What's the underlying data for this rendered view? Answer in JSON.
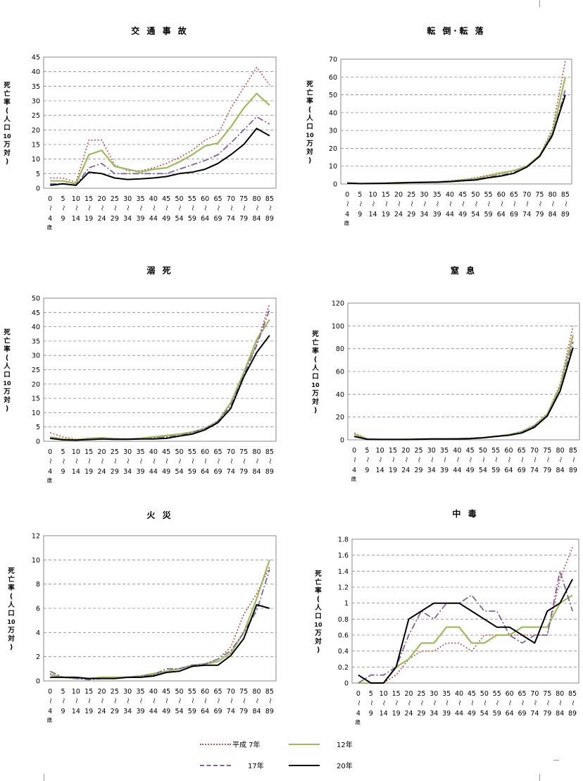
{
  "ylabel_lines": [
    "死",
    "亡",
    "率",
    "(",
    "人",
    "口",
    "10",
    "万",
    "対",
    ")"
  ],
  "age_groups": {
    "top": [
      "0",
      "5",
      "10",
      "15",
      "20",
      "25",
      "30",
      "35",
      "40",
      "45",
      "50",
      "55",
      "60",
      "65",
      "70",
      "75",
      "80",
      "85"
    ],
    "bottom": [
      "4",
      "9",
      "14",
      "19",
      "24",
      "29",
      "34",
      "39",
      "44",
      "49",
      "54",
      "59",
      "64",
      "69",
      "74",
      "79",
      "84",
      "89"
    ],
    "first_suffix": "歳",
    "separator": "〜"
  },
  "legend": {
    "items": [
      {
        "label": "平成 7年",
        "color": "#c0504d",
        "style": "dotted"
      },
      {
        "label": "12年",
        "color": "#9bbb59",
        "style": "solid"
      },
      {
        "label": "17年",
        "color": "#8064a2",
        "style": "dashdot"
      },
      {
        "label": "20年",
        "color": "#000000",
        "style": "solid"
      }
    ]
  },
  "chart_data": [
    {
      "type": "line",
      "title": "交 通 事 故",
      "ylim": [
        0,
        45
      ],
      "yticks": [
        0,
        5,
        10,
        15,
        20,
        25,
        30,
        35,
        40,
        45
      ],
      "series": [
        {
          "name": "平成 7年",
          "values": [
            3.5,
            3.5,
            2.0,
            16.5,
            16.5,
            8.0,
            6.0,
            6.0,
            7.0,
            8.5,
            10.5,
            13.0,
            16.5,
            18.5,
            27.5,
            34.5,
            41.5,
            35.5
          ]
        },
        {
          "name": "12年",
          "values": [
            2.5,
            2.5,
            1.5,
            11.5,
            13.0,
            7.5,
            6.5,
            5.5,
            6.5,
            7.0,
            9.0,
            11.5,
            14.5,
            15.5,
            21.0,
            27.5,
            32.5,
            28.5
          ]
        },
        {
          "name": "17年",
          "values": [
            1.5,
            1.5,
            1.0,
            7.0,
            8.5,
            5.0,
            5.0,
            5.0,
            5.0,
            5.0,
            6.5,
            8.0,
            9.5,
            11.5,
            15.5,
            20.0,
            24.5,
            22.0
          ]
        },
        {
          "name": "20年",
          "values": [
            1.0,
            1.5,
            1.0,
            5.5,
            5.0,
            3.5,
            3.0,
            3.2,
            3.5,
            4.0,
            5.0,
            5.5,
            6.5,
            8.5,
            11.5,
            15.0,
            20.5,
            18.0
          ]
        }
      ]
    },
    {
      "type": "line",
      "title": "転 倒･転 落",
      "ylim": [
        0,
        70
      ],
      "yticks": [
        0,
        10,
        20,
        30,
        40,
        50,
        60,
        70
      ],
      "series": [
        {
          "name": "平成 7年",
          "values": [
            0.5,
            0.2,
            0.3,
            0.5,
            0.8,
            1.0,
            1.2,
            1.3,
            1.8,
            2.5,
            3.5,
            5.0,
            6.5,
            7.5,
            10.0,
            16.0,
            31.0,
            69.0
          ]
        },
        {
          "name": "12年",
          "values": [
            0.5,
            0.2,
            0.3,
            0.4,
            0.7,
            0.8,
            1.0,
            1.2,
            1.5,
            2.2,
            3.0,
            4.5,
            6.0,
            7.5,
            10.0,
            16.0,
            29.0,
            60.0
          ]
        },
        {
          "name": "17年",
          "values": [
            0.4,
            0.2,
            0.2,
            0.4,
            0.6,
            0.8,
            1.0,
            1.2,
            1.5,
            2.0,
            2.5,
            3.8,
            5.0,
            6.5,
            9.5,
            15.5,
            27.0,
            53.0
          ]
        },
        {
          "name": "20年",
          "values": [
            0.5,
            0.2,
            0.3,
            0.4,
            0.6,
            0.8,
            0.9,
            1.0,
            1.3,
            1.8,
            2.2,
            3.5,
            4.5,
            6.0,
            9.5,
            15.5,
            27.5,
            50.0
          ]
        }
      ]
    },
    {
      "type": "line",
      "title": "溺 死",
      "ylim": [
        0,
        50
      ],
      "yticks": [
        0,
        5,
        10,
        15,
        20,
        25,
        30,
        35,
        40,
        45,
        50
      ],
      "series": [
        {
          "name": "平成 7年",
          "values": [
            3.0,
            1.5,
            0.7,
            1.0,
            1.2,
            1.0,
            0.8,
            1.0,
            1.2,
            1.5,
            2.5,
            3.0,
            4.0,
            7.0,
            13.5,
            24.0,
            34.0,
            48.0
          ]
        },
        {
          "name": "12年",
          "values": [
            1.5,
            0.8,
            0.5,
            1.0,
            1.2,
            0.9,
            0.8,
            1.0,
            1.5,
            2.0,
            2.5,
            3.2,
            4.5,
            7.0,
            13.5,
            24.0,
            35.5,
            42.5
          ]
        },
        {
          "name": "17年",
          "values": [
            1.0,
            0.5,
            0.4,
            0.6,
            0.8,
            0.7,
            0.8,
            0.8,
            1.0,
            1.5,
            2.0,
            3.0,
            4.5,
            7.0,
            12.5,
            23.0,
            33.5,
            46.0
          ]
        },
        {
          "name": "20年",
          "values": [
            1.0,
            0.5,
            0.4,
            0.6,
            0.8,
            0.7,
            0.7,
            0.8,
            0.8,
            1.0,
            1.8,
            2.5,
            4.0,
            6.5,
            11.5,
            22.5,
            31.0,
            37.0
          ]
        }
      ]
    },
    {
      "type": "line",
      "title": "窒 息",
      "ylim": [
        0,
        120
      ],
      "yticks": [
        0,
        20,
        40,
        60,
        80,
        100,
        120
      ],
      "series": [
        {
          "name": "平成 7年",
          "values": [
            6.0,
            1.0,
            0.5,
            0.5,
            0.5,
            0.8,
            0.8,
            0.8,
            1.0,
            1.5,
            2.0,
            3.0,
            4.5,
            7.5,
            13.0,
            23.0,
            49.0,
            100.0
          ]
        },
        {
          "name": "12年",
          "values": [
            5.0,
            0.8,
            0.5,
            0.5,
            0.5,
            0.8,
            0.8,
            0.8,
            1.0,
            1.3,
            2.0,
            3.0,
            4.5,
            7.0,
            12.5,
            22.5,
            47.0,
            92.0
          ]
        },
        {
          "name": "17年",
          "values": [
            3.0,
            0.5,
            0.3,
            0.3,
            0.5,
            0.5,
            0.8,
            0.8,
            1.0,
            1.3,
            2.0,
            3.0,
            4.0,
            6.5,
            12.0,
            21.0,
            44.0,
            86.0
          ]
        },
        {
          "name": "20年",
          "values": [
            3.0,
            0.5,
            0.3,
            0.3,
            0.3,
            0.5,
            0.8,
            0.8,
            0.8,
            1.0,
            1.8,
            3.0,
            4.0,
            6.0,
            11.0,
            21.0,
            43.0,
            81.0
          ]
        }
      ]
    },
    {
      "type": "line",
      "title": "火 災",
      "ylim": [
        0,
        12
      ],
      "yticks": [
        0,
        2,
        4,
        6,
        8,
        10,
        12
      ],
      "series": [
        {
          "name": "平成 7年",
          "values": [
            0.6,
            0.3,
            0.2,
            0.2,
            0.3,
            0.3,
            0.3,
            0.4,
            0.5,
            0.8,
            1.0,
            1.3,
            1.4,
            1.8,
            2.8,
            5.5,
            7.2,
            9.4
          ]
        },
        {
          "name": "12年",
          "values": [
            0.5,
            0.3,
            0.2,
            0.2,
            0.3,
            0.3,
            0.3,
            0.4,
            0.6,
            0.8,
            1.0,
            1.3,
            1.4,
            1.6,
            2.3,
            4.0,
            6.8,
            10.0
          ]
        },
        {
          "name": "17年",
          "values": [
            0.8,
            0.3,
            0.2,
            0.1,
            0.2,
            0.2,
            0.3,
            0.4,
            0.5,
            1.0,
            1.0,
            1.3,
            1.4,
            1.8,
            2.5,
            4.0,
            5.8,
            9.2
          ]
        },
        {
          "name": "20年",
          "values": [
            0.3,
            0.3,
            0.3,
            0.2,
            0.2,
            0.2,
            0.3,
            0.3,
            0.4,
            0.7,
            0.8,
            1.2,
            1.3,
            1.3,
            2.1,
            3.5,
            6.3,
            6.0
          ]
        }
      ]
    },
    {
      "type": "line",
      "title": "中 毒",
      "ylim": [
        0,
        1.8
      ],
      "yticks": [
        0,
        0.2,
        0.4,
        0.6,
        0.8,
        1,
        1.2,
        1.4,
        1.6,
        1.8
      ],
      "series": [
        {
          "name": "平成 7年",
          "values": [
            0.0,
            0.0,
            0.0,
            0.1,
            0.3,
            0.4,
            0.4,
            0.5,
            0.5,
            0.4,
            0.6,
            0.6,
            0.6,
            0.6,
            0.6,
            0.6,
            1.3,
            1.7
          ]
        },
        {
          "name": "12年",
          "values": [
            0.0,
            0.0,
            0.0,
            0.2,
            0.3,
            0.5,
            0.5,
            0.7,
            0.7,
            0.5,
            0.5,
            0.6,
            0.6,
            0.7,
            0.7,
            0.7,
            1.0,
            1.1
          ]
        },
        {
          "name": "17年",
          "values": [
            0.0,
            0.1,
            0.1,
            0.2,
            0.6,
            0.9,
            0.8,
            1.0,
            1.0,
            1.1,
            0.9,
            0.9,
            0.6,
            0.5,
            0.6,
            0.6,
            1.4,
            0.9
          ]
        },
        {
          "name": "20年",
          "values": [
            0.1,
            0.0,
            0.0,
            0.2,
            0.8,
            0.9,
            1.0,
            1.0,
            1.0,
            0.9,
            0.8,
            0.7,
            0.7,
            0.6,
            0.5,
            0.9,
            1.0,
            1.3
          ]
        }
      ]
    }
  ]
}
